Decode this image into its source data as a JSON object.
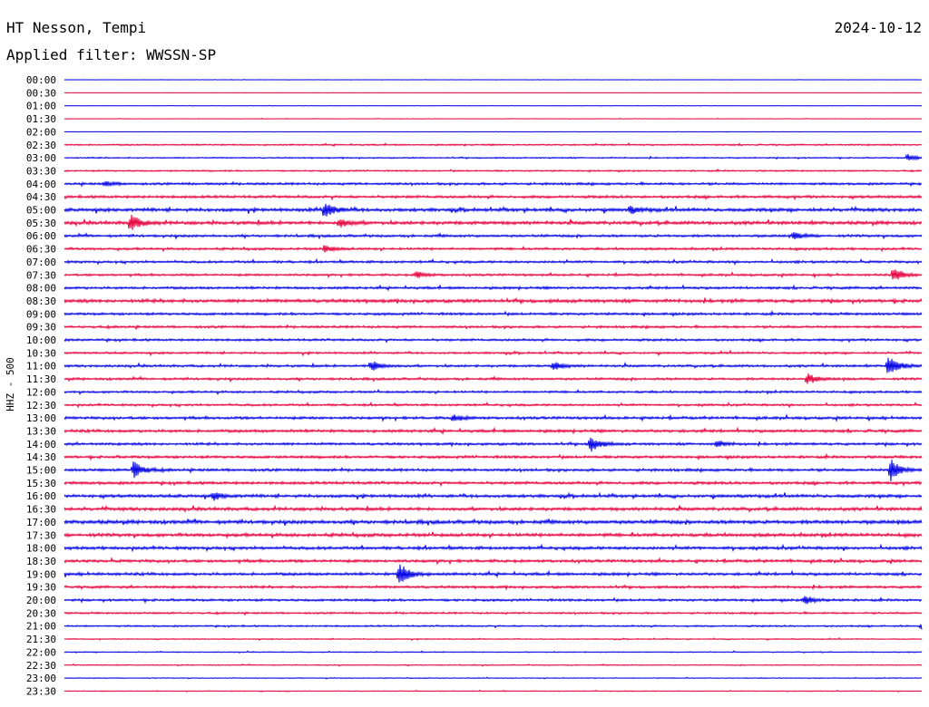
{
  "station_title": "HT Nesson, Tempi",
  "date": "2024-10-12",
  "filter_label": "Applied filter: WWSSN-SP",
  "chart_data": {
    "type": "line",
    "title": "HT Nesson, Tempi",
    "subtitle": "Applied filter: WWSSN-SP",
    "ylabel": "HHZ - 500",
    "row_labels": [
      "00:00",
      "00:30",
      "01:00",
      "01:30",
      "02:00",
      "02:30",
      "03:00",
      "03:30",
      "04:00",
      "04:30",
      "05:00",
      "05:30",
      "06:00",
      "06:30",
      "07:00",
      "07:30",
      "08:00",
      "08:30",
      "09:00",
      "09:30",
      "10:00",
      "10:30",
      "11:00",
      "11:30",
      "12:00",
      "12:30",
      "13:00",
      "13:30",
      "14:00",
      "14:30",
      "15:00",
      "15:30",
      "16:00",
      "16:30",
      "17:00",
      "17:30",
      "18:00",
      "18:30",
      "19:00",
      "19:30",
      "20:00",
      "20:30",
      "21:00",
      "21:30",
      "22:00",
      "22:30",
      "23:00",
      "23:30"
    ],
    "series_colors": [
      "#0000e6",
      "#e6003c"
    ],
    "noise_level": [
      0.2,
      0.1,
      0.2,
      0.3,
      0.2,
      0.9,
      0.8,
      0.9,
      1.4,
      1.6,
      2.0,
      2.0,
      1.5,
      1.4,
      1.4,
      1.3,
      1.5,
      2.0,
      1.5,
      1.4,
      1.4,
      1.2,
      1.4,
      1.4,
      1.3,
      1.3,
      1.6,
      1.7,
      1.5,
      1.6,
      1.6,
      1.7,
      1.8,
      1.9,
      2.2,
      2.0,
      1.8,
      1.7,
      1.7,
      1.5,
      1.4,
      1.1,
      1.0,
      0.6,
      0.6,
      0.6,
      0.5,
      0.5
    ],
    "events": [
      {
        "row": "03:00",
        "x_min": 29.5,
        "amp": 4
      },
      {
        "row": "04:00",
        "x_min": 1.4,
        "amp": 3
      },
      {
        "row": "05:00",
        "x_min": 9.1,
        "amp": 10
      },
      {
        "row": "05:00",
        "x_min": 19.8,
        "amp": 4
      },
      {
        "row": "05:30",
        "x_min": 2.3,
        "amp": 10
      },
      {
        "row": "05:30",
        "x_min": 9.6,
        "amp": 5
      },
      {
        "row": "06:00",
        "x_min": 25.5,
        "amp": 4
      },
      {
        "row": "06:30",
        "x_min": 9.1,
        "amp": 4
      },
      {
        "row": "07:30",
        "x_min": 12.3,
        "amp": 4
      },
      {
        "row": "07:30",
        "x_min": 29.0,
        "amp": 8
      },
      {
        "row": "11:00",
        "x_min": 10.7,
        "amp": 7
      },
      {
        "row": "11:00",
        "x_min": 17.1,
        "amp": 5
      },
      {
        "row": "11:00",
        "x_min": 28.8,
        "amp": 14
      },
      {
        "row": "11:30",
        "x_min": 26.0,
        "amp": 6
      },
      {
        "row": "13:00",
        "x_min": 13.6,
        "amp": 4
      },
      {
        "row": "14:00",
        "x_min": 18.4,
        "amp": 9
      },
      {
        "row": "14:00",
        "x_min": 22.8,
        "amp": 4
      },
      {
        "row": "15:00",
        "x_min": 2.4,
        "amp": 11
      },
      {
        "row": "15:00",
        "x_min": 28.9,
        "amp": 14
      },
      {
        "row": "16:00",
        "x_min": 5.2,
        "amp": 4
      },
      {
        "row": "19:00",
        "x_min": 11.7,
        "amp": 14
      },
      {
        "row": "20:00",
        "x_min": 25.9,
        "amp": 5
      },
      {
        "row": "21:00",
        "x_min": 30.0,
        "amp": 5
      }
    ]
  }
}
